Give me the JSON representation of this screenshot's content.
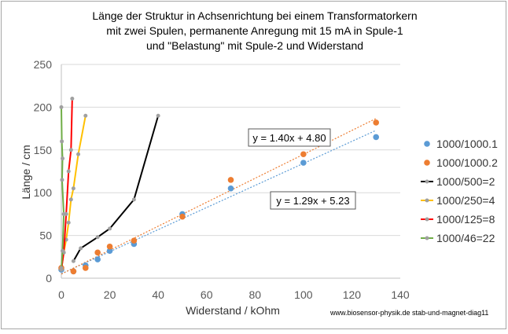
{
  "chart_data": {
    "type": "scatter",
    "title_lines": [
      "Länge der Struktur in Achsenrichtung bei einem Transformatorkern",
      "mit zwei Spulen,  permanente Anregung mit 15 mA in Spule-1",
      "und  \"Belastung\" mit Spule-2 und Widerstand"
    ],
    "xlabel": "Widerstand / kOhm",
    "ylabel": "Länge / cm",
    "xlim": [
      0,
      140
    ],
    "ylim": [
      0,
      250
    ],
    "xticks": [
      0,
      20,
      40,
      60,
      80,
      100,
      120,
      140
    ],
    "yticks": [
      0,
      50,
      100,
      150,
      200,
      250
    ],
    "gridlines": "horizontal",
    "legend_position": "right",
    "footer": "www.biosensor-physik.de  stab-und-magnet-diag11",
    "series": [
      {
        "name": "1000/1000.1",
        "style": "markers",
        "color": "#5b9bd5",
        "x": [
          0,
          5,
          10,
          15,
          20,
          30,
          50,
          70,
          100,
          130
        ],
        "y": [
          10,
          8,
          15,
          22,
          32,
          40,
          75,
          105,
          135,
          165
        ]
      },
      {
        "name": "1000/1000.2",
        "style": "markers",
        "color": "#ed7d31",
        "x": [
          0,
          5,
          10,
          15,
          20,
          30,
          50,
          70,
          100,
          130
        ],
        "y": [
          12,
          8,
          12,
          30,
          37,
          44,
          72,
          115,
          145,
          182
        ]
      },
      {
        "name": "1000/500=2",
        "style": "line",
        "color": "#000000",
        "x": [
          5,
          8,
          15,
          20,
          30,
          40
        ],
        "y": [
          20,
          35,
          48,
          58,
          92,
          190
        ]
      },
      {
        "name": "1000/250=4",
        "style": "line",
        "color": "#ffc000",
        "x": [
          0,
          1,
          2,
          3,
          4,
          5,
          7,
          10
        ],
        "y": [
          10,
          30,
          45,
          65,
          92,
          105,
          145,
          190
        ]
      },
      {
        "name": "1000/125=8",
        "style": "line",
        "color": "#ff0000",
        "x": [
          0,
          1,
          2,
          3,
          4,
          4.5
        ],
        "y": [
          10,
          30,
          75,
          125,
          150,
          210
        ]
      },
      {
        "name": "1000/46=22",
        "style": "line",
        "color": "#70ad47",
        "x": [
          0,
          0.5,
          1,
          0.3,
          0.5,
          0.2,
          0
        ],
        "y": [
          12,
          32,
          75,
          115,
          140,
          160,
          200
        ]
      }
    ],
    "trendlines": [
      {
        "series": "1000/1000.1",
        "color": "#5b9bd5",
        "slope": 1.29,
        "intercept": 5.23,
        "x_range": [
          0,
          130
        ],
        "label": "y = 1.29x + 5.23"
      },
      {
        "series": "1000/1000.2",
        "color": "#ed7d31",
        "slope": 1.4,
        "intercept": 4.8,
        "x_range": [
          0,
          130
        ],
        "label": "y = 1.40x + 4.80"
      }
    ]
  }
}
